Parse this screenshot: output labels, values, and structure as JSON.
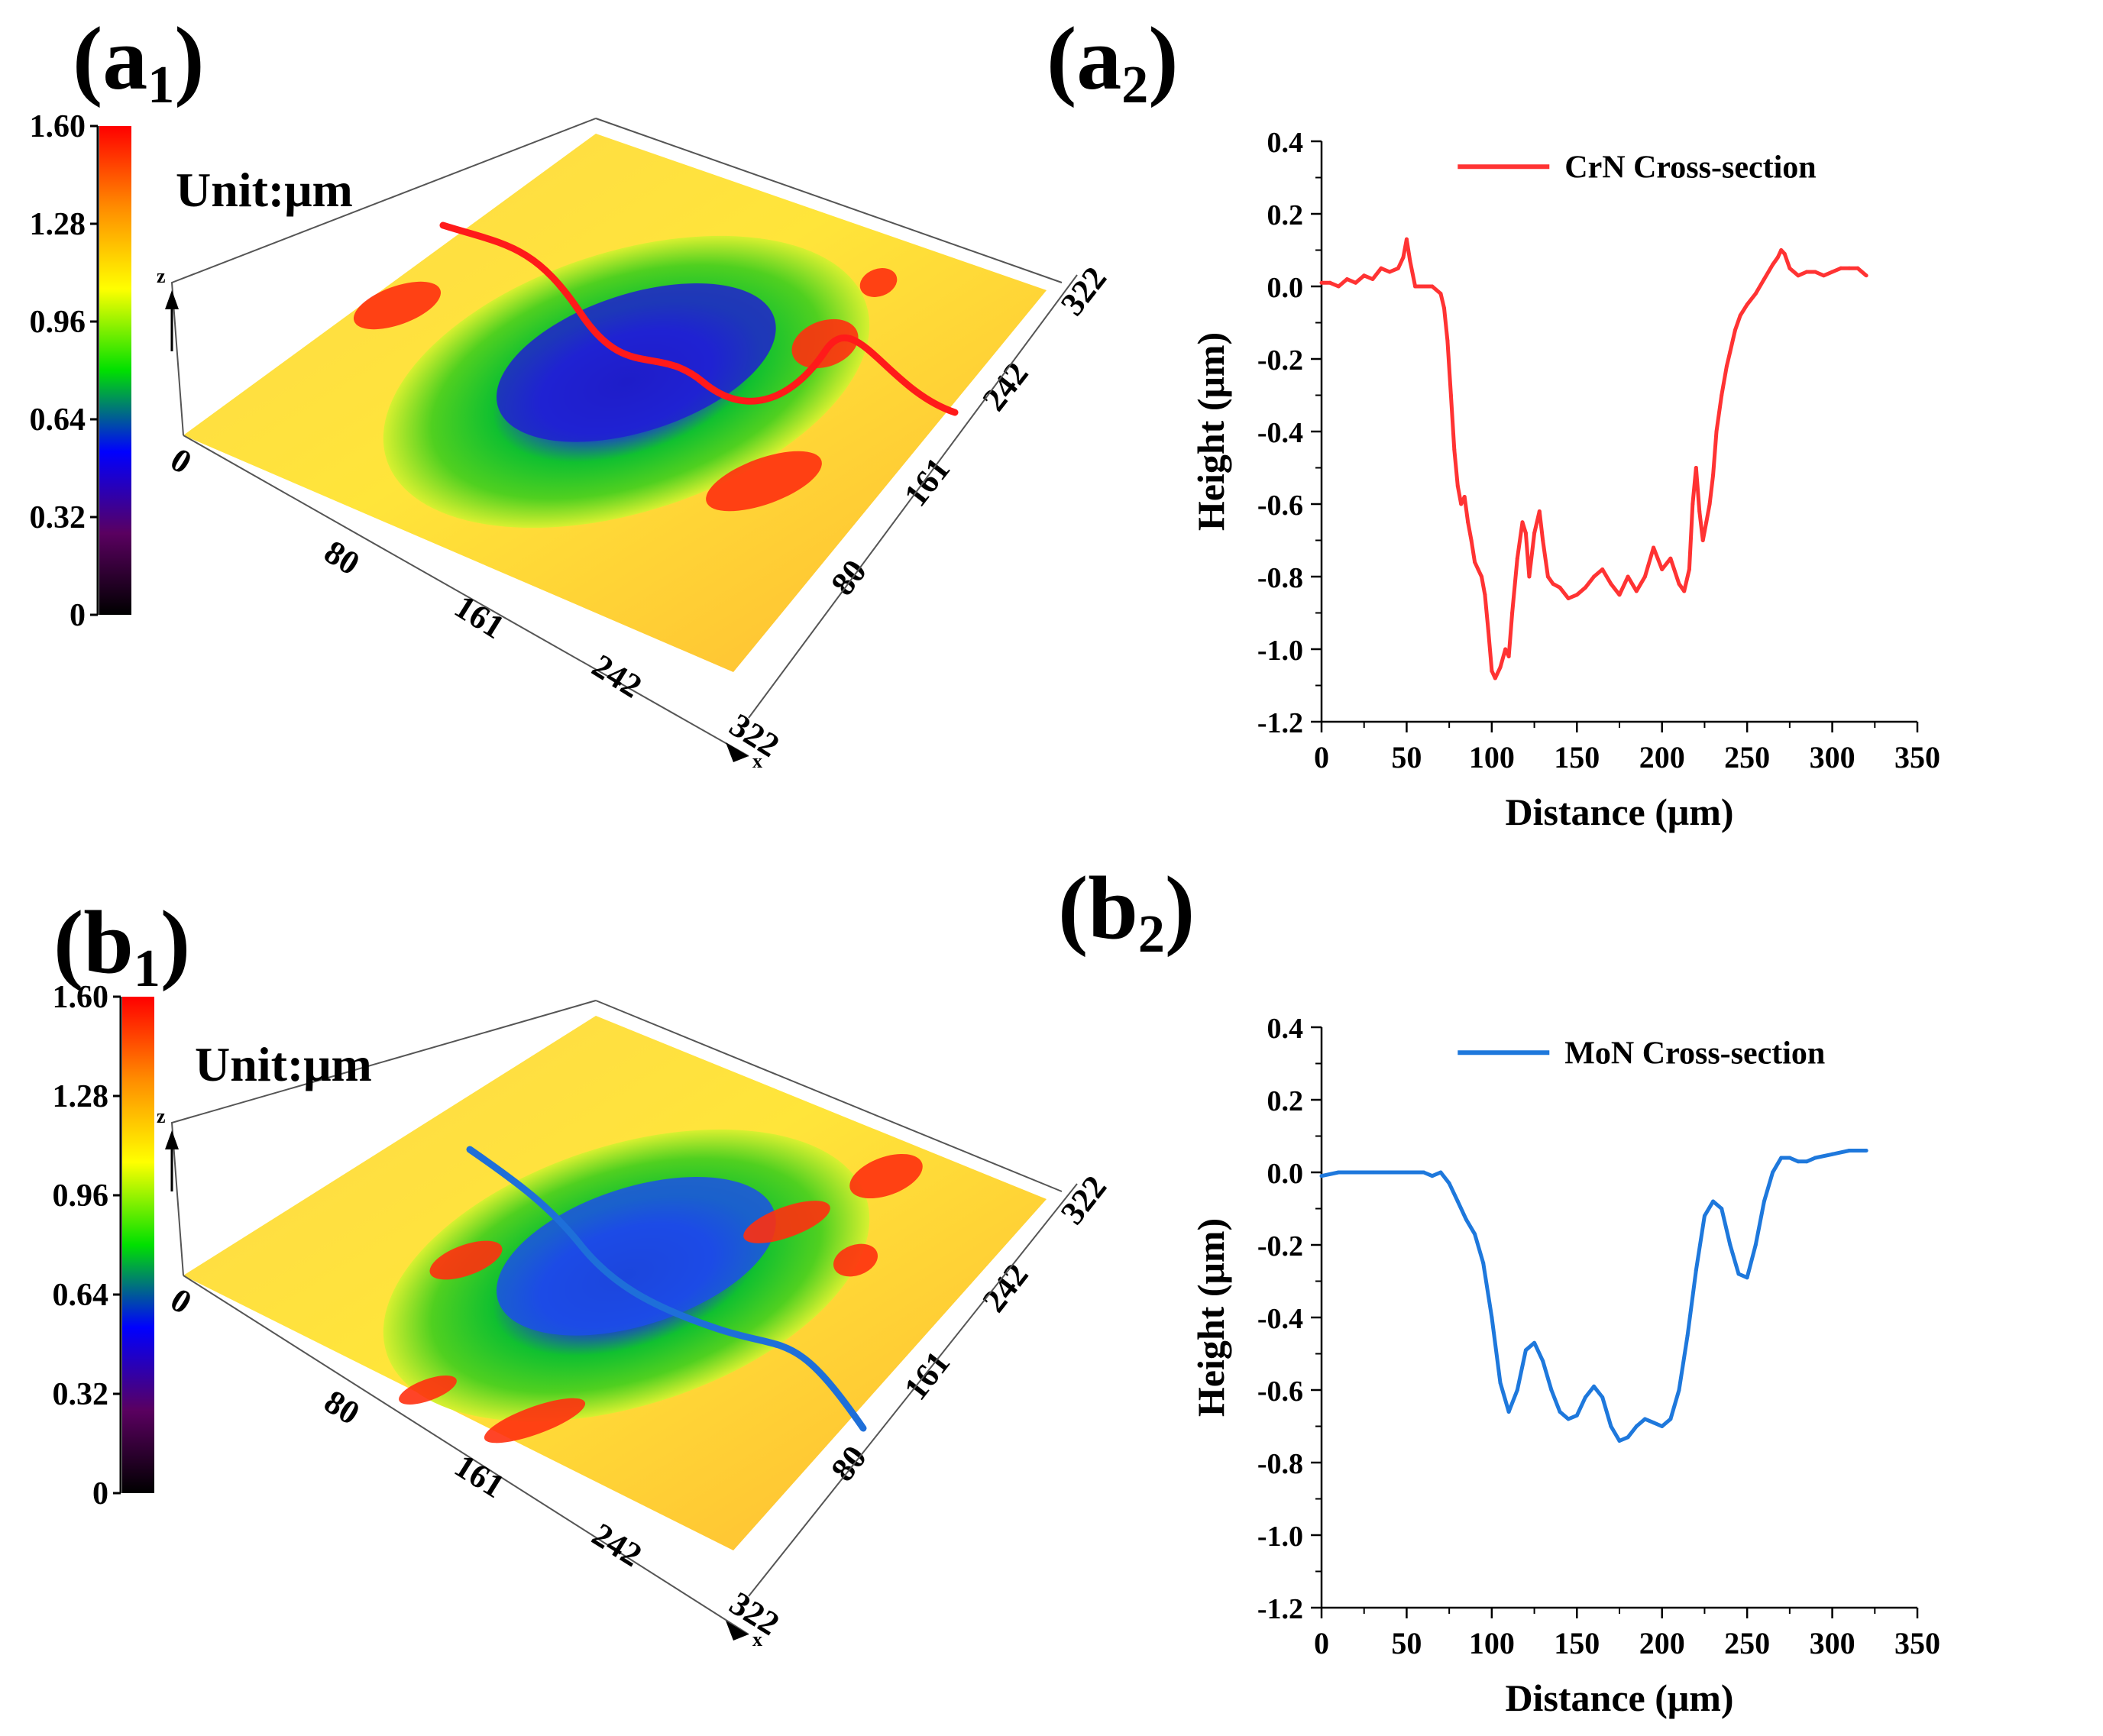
{
  "panels": {
    "a1": {
      "letter": "(a",
      "sub": "1",
      "close": ")"
    },
    "a2": {
      "letter": "(a",
      "sub": "2",
      "close": ")"
    },
    "b1": {
      "letter": "(b",
      "sub": "1",
      "close": ")"
    },
    "b2": {
      "letter": "(b",
      "sub": "2",
      "close": ")"
    }
  },
  "surfaces": [
    {
      "id": "a1",
      "unit_label": "Unit:μm",
      "colorbar_ticks": [
        "1.60",
        "1.28",
        "0.96",
        "0.64",
        "0.32",
        "0"
      ],
      "colorbar_colors": [
        "#ff0000",
        "#ff8c00",
        "#ffff00",
        "#00e000",
        "#0000ff",
        "#5a0060",
        "#000000"
      ],
      "x_ticks": [
        "80",
        "161",
        "242",
        "322"
      ],
      "y_ticks": [
        "80",
        "161",
        "242",
        "322"
      ],
      "zero_label": "0",
      "x_axis_letter": "x",
      "z_axis_letter": "z",
      "profile_line_color": "#ff1a1a",
      "scar_style": "smooth"
    },
    {
      "id": "b1",
      "unit_label": "Unit:μm",
      "colorbar_ticks": [
        "1.60",
        "1.28",
        "0.96",
        "0.64",
        "0.32",
        "0"
      ],
      "colorbar_colors": [
        "#ff0000",
        "#ff8c00",
        "#ffff00",
        "#00e000",
        "#0000ff",
        "#5a0060",
        "#000000"
      ],
      "x_ticks": [
        "80",
        "161",
        "242",
        "322"
      ],
      "y_ticks": [
        "80",
        "161",
        "242",
        "322"
      ],
      "zero_label": "0",
      "x_axis_letter": "x",
      "z_axis_letter": "z",
      "profile_line_color": "#1e6fd9",
      "scar_style": "rough"
    }
  ],
  "chart_data": [
    {
      "type": "line",
      "xlabel": "Distance (μm)",
      "ylabel": "Height (μm)",
      "xlim": [
        0,
        350
      ],
      "ylim": [
        -1.2,
        0.4
      ],
      "xticks": [
        0,
        50,
        100,
        150,
        200,
        250,
        300,
        350
      ],
      "yticks": [
        -1.2,
        -1.0,
        -0.8,
        -0.6,
        -0.4,
        -0.2,
        0.0,
        0.2,
        0.4
      ],
      "legend_position": "top-center",
      "series": [
        {
          "name": "CrN  Cross-section",
          "color": "#ff3333",
          "x": [
            0,
            5,
            10,
            15,
            20,
            25,
            30,
            35,
            40,
            45,
            48,
            50,
            52,
            55,
            60,
            65,
            70,
            72,
            74,
            76,
            78,
            80,
            82,
            84,
            86,
            88,
            90,
            92,
            94,
            96,
            98,
            100,
            102,
            105,
            108,
            110,
            112,
            115,
            118,
            120,
            122,
            125,
            128,
            130,
            133,
            136,
            140,
            145,
            150,
            155,
            160,
            165,
            170,
            175,
            180,
            185,
            190,
            195,
            200,
            205,
            210,
            213,
            216,
            218,
            220,
            222,
            224,
            226,
            228,
            230,
            232,
            235,
            238,
            240,
            243,
            246,
            250,
            255,
            260,
            265,
            268,
            270,
            272,
            275,
            280,
            285,
            290,
            295,
            300,
            305,
            310,
            315,
            320
          ],
          "y": [
            0.01,
            0.01,
            0.0,
            0.02,
            0.01,
            0.03,
            0.02,
            0.05,
            0.04,
            0.05,
            0.08,
            0.13,
            0.07,
            0.0,
            0.0,
            0.0,
            -0.02,
            -0.06,
            -0.15,
            -0.3,
            -0.45,
            -0.55,
            -0.6,
            -0.58,
            -0.65,
            -0.7,
            -0.76,
            -0.78,
            -0.8,
            -0.85,
            -0.95,
            -1.06,
            -1.08,
            -1.05,
            -1.0,
            -1.02,
            -0.9,
            -0.75,
            -0.65,
            -0.68,
            -0.8,
            -0.68,
            -0.62,
            -0.7,
            -0.8,
            -0.82,
            -0.83,
            -0.86,
            -0.85,
            -0.83,
            -0.8,
            -0.78,
            -0.82,
            -0.85,
            -0.8,
            -0.84,
            -0.8,
            -0.72,
            -0.78,
            -0.75,
            -0.82,
            -0.84,
            -0.78,
            -0.6,
            -0.5,
            -0.62,
            -0.7,
            -0.65,
            -0.6,
            -0.52,
            -0.4,
            -0.3,
            -0.22,
            -0.18,
            -0.12,
            -0.08,
            -0.05,
            -0.02,
            0.02,
            0.06,
            0.08,
            0.1,
            0.09,
            0.05,
            0.03,
            0.04,
            0.04,
            0.03,
            0.04,
            0.05,
            0.05,
            0.05,
            0.03
          ]
        }
      ]
    },
    {
      "type": "line",
      "xlabel": "Distance (μm)",
      "ylabel": "Height (μm)",
      "xlim": [
        0,
        350
      ],
      "ylim": [
        -1.2,
        0.4
      ],
      "xticks": [
        0,
        50,
        100,
        150,
        200,
        250,
        300,
        350
      ],
      "yticks": [
        -1.2,
        -1.0,
        -0.8,
        -0.6,
        -0.4,
        -0.2,
        0.0,
        0.2,
        0.4
      ],
      "legend_position": "top-center",
      "series": [
        {
          "name": "MoN  Cross-section",
          "color": "#1e78dc",
          "x": [
            0,
            10,
            20,
            30,
            40,
            50,
            60,
            65,
            70,
            75,
            80,
            85,
            90,
            95,
            100,
            105,
            110,
            115,
            120,
            125,
            130,
            135,
            140,
            145,
            150,
            155,
            160,
            165,
            170,
            175,
            180,
            185,
            190,
            195,
            200,
            205,
            210,
            215,
            220,
            225,
            230,
            235,
            240,
            245,
            250,
            255,
            260,
            265,
            270,
            275,
            280,
            285,
            290,
            300,
            310,
            320
          ],
          "y": [
            -0.01,
            0.0,
            0.0,
            0.0,
            0.0,
            0.0,
            0.0,
            -0.01,
            0.0,
            -0.03,
            -0.08,
            -0.13,
            -0.17,
            -0.25,
            -0.4,
            -0.58,
            -0.66,
            -0.6,
            -0.49,
            -0.47,
            -0.52,
            -0.6,
            -0.66,
            -0.68,
            -0.67,
            -0.62,
            -0.59,
            -0.62,
            -0.7,
            -0.74,
            -0.73,
            -0.7,
            -0.68,
            -0.69,
            -0.7,
            -0.68,
            -0.6,
            -0.45,
            -0.27,
            -0.12,
            -0.08,
            -0.1,
            -0.2,
            -0.28,
            -0.29,
            -0.2,
            -0.08,
            0.0,
            0.04,
            0.04,
            0.03,
            0.03,
            0.04,
            0.05,
            0.06,
            0.06
          ]
        }
      ]
    }
  ]
}
